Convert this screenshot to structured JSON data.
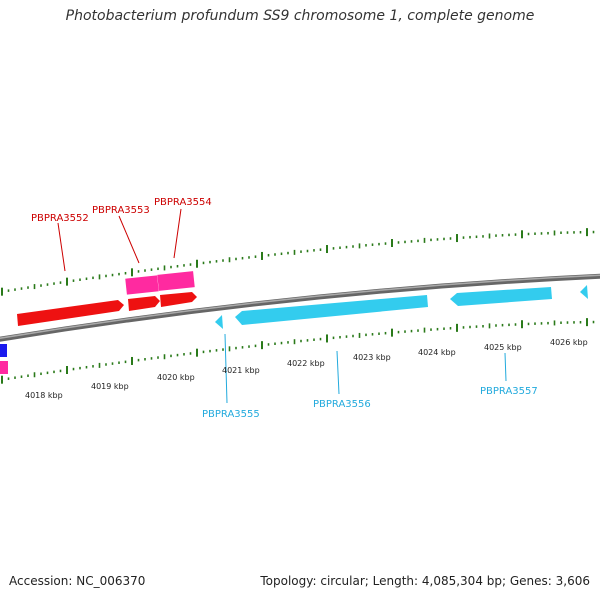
{
  "title": "Photobacterium profundum SS9 chromosome 1, complete genome",
  "footer": {
    "accession": "Accession: NC_006370",
    "stats": "Topology: circular; Length: 4,085,304 bp; Genes: 3,606"
  },
  "colors": {
    "forward_gene": "#ee1111",
    "forward_gene_alt": "#ff2aa0",
    "reverse_gene": "#33ccee",
    "edge_gene_blue": "#1a1aee",
    "backbone": "#888888",
    "ticks": "#2a7a1a",
    "forward_label": "#cc0000",
    "reverse_label": "#22aadd"
  },
  "gene_labels": {
    "top": [
      "PBPRA3552",
      "PBPRA3553",
      "PBPRA3554"
    ],
    "bottom": [
      "PBPRA3555",
      "PBPRA3556",
      "PBPRA3557"
    ]
  },
  "kbp_labels": [
    "4018 kbp",
    "4019 kbp",
    "4020 kbp",
    "4021 kbp",
    "4022 kbp",
    "4023 kbp",
    "4024 kbp",
    "4025 kbp",
    "4026 kbp"
  ]
}
